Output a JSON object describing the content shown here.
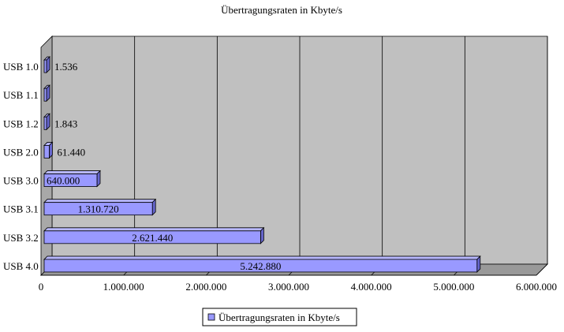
{
  "chart_data": {
    "type": "bar",
    "orientation": "horizontal",
    "style": "3d",
    "title": "Übertragungsraten in Kbyte/s",
    "categories": [
      "USB 1.0",
      "USB 1.1",
      "USB 1.2",
      "USB 2.0",
      "USB 3.0",
      "USB 3.1",
      "USB 3.2",
      "USB 4.0"
    ],
    "series": [
      {
        "name": "Übertragungsraten in Kbyte/s",
        "values": [
          1536,
          1536,
          1843,
          61440,
          640000,
          1310720,
          2621440,
          5242880
        ],
        "data_labels": [
          "1.536",
          "",
          "1.843",
          "61.440",
          "640.000",
          "1.310.720",
          "2.621.440",
          "5.242.880"
        ]
      }
    ],
    "xlim": [
      0,
      6000000
    ],
    "x_ticks": [
      0,
      1000000,
      2000000,
      3000000,
      4000000,
      5000000,
      6000000
    ],
    "x_tick_labels": [
      "0",
      "1.000.000",
      "2.000.000",
      "3.000.000",
      "4.000.000",
      "5.000.000",
      "6.000.000"
    ],
    "xlabel": "",
    "ylabel": "",
    "grid": true,
    "legend": "bottom-center",
    "colors": {
      "bar_front": "#9999ff",
      "bar_top": "#b8b8ff",
      "bar_side": "#6666cc",
      "plot_back": "#c0c0c0",
      "plot_side": "#a8a8a8",
      "plot_floor": "#999999"
    }
  }
}
